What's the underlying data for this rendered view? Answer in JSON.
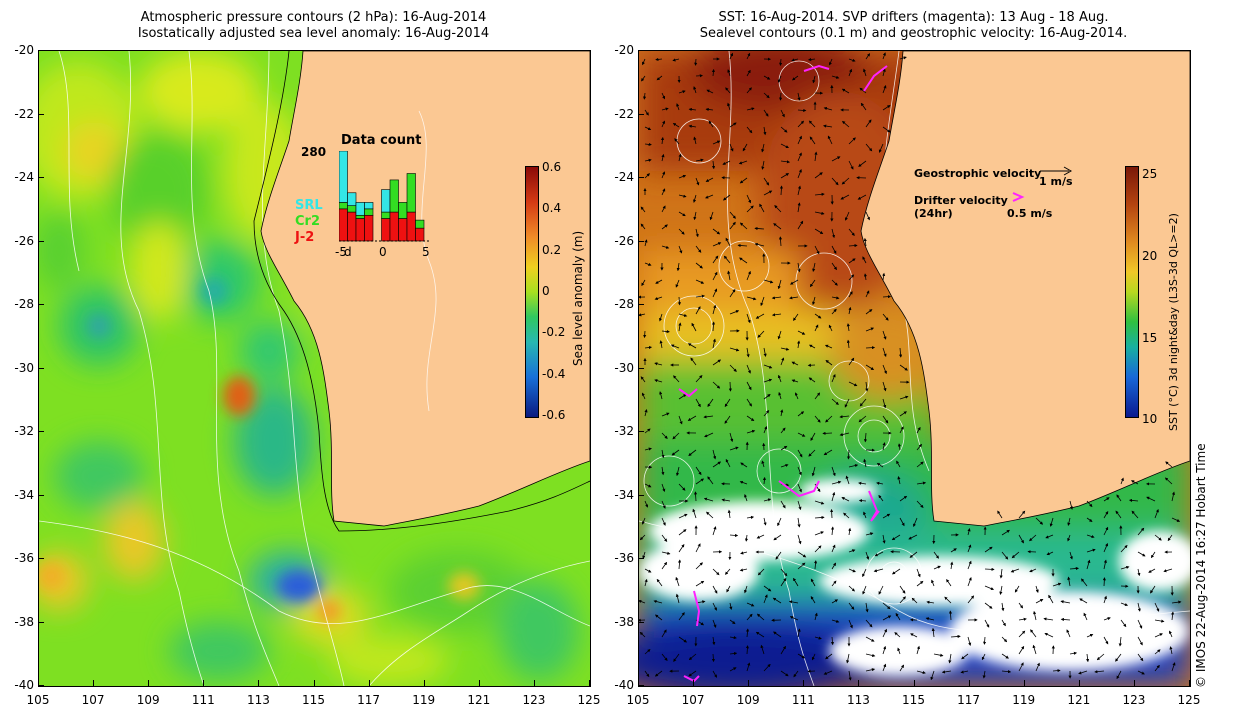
{
  "left": {
    "title_line1": "Atmospheric pressure contours (2 hPa): 16-Aug-2014",
    "title_line2": "Isostatically adjusted sea level anomaly: 16-Aug-2014",
    "colorbar_label": "Sea level anomaly (m)",
    "colorbar_ticks": [
      "0.6",
      "0.4",
      "0.2",
      "0",
      "-0.2",
      "-0.4",
      "-0.6"
    ],
    "inset": {
      "title": "Data count",
      "max_label": "280",
      "x_ticks": [
        "-5",
        "0",
        "5"
      ],
      "x_extra": "d",
      "legend": [
        {
          "name": "SRL",
          "color": "#33e6e6"
        },
        {
          "name": "Cr2",
          "color": "#33dd22"
        },
        {
          "name": "J-2",
          "color": "#ee1111"
        }
      ],
      "chart_data": {
        "type": "bar",
        "title": "Data count",
        "x": [
          -5,
          -4,
          -3,
          -2,
          -1,
          0,
          1,
          2,
          3,
          4
        ],
        "ylim": [
          0,
          280
        ],
        "series": [
          {
            "name": "J-2",
            "values": [
              100,
              90,
              70,
              80,
              0,
              70,
              90,
              70,
              90,
              40
            ]
          },
          {
            "name": "Cr2",
            "values": [
              20,
              20,
              10,
              20,
              0,
              20,
              100,
              50,
              120,
              25
            ]
          },
          {
            "name": "SRL",
            "values": [
              160,
              40,
              40,
              20,
              0,
              70,
              0,
              0,
              0,
              0
            ]
          }
        ]
      }
    }
  },
  "right": {
    "title_line1": "SST: 16-Aug-2014. SVP drifters (magenta): 13 Aug - 18 Aug.",
    "title_line2": "Sealevel contours (0.1 m) and geostrophic velocity: 16-Aug-2014.",
    "colorbar_label": "SST (°C) 3d night&day (L3S-3d QL>=2)",
    "colorbar_ticks": [
      "25",
      "20",
      "15",
      "10"
    ],
    "geostrophic_label": "Geostrophic velocity",
    "geostrophic_value": "1 m/s",
    "drifter_label": "Drifter velocity",
    "drifter_sub": "(24hr)",
    "drifter_value": "0.5 m/s"
  },
  "axes": {
    "y_ticks": [
      "-20",
      "-22",
      "-24",
      "-26",
      "-28",
      "-30",
      "-32",
      "-34",
      "-36",
      "-38",
      "-40"
    ],
    "x_ticks": [
      "105",
      "107",
      "109",
      "111",
      "113",
      "115",
      "117",
      "119",
      "121",
      "123",
      "125"
    ]
  },
  "credit": "© IMOS 22-Aug-2014 16:27 Hobart Time",
  "colors": {
    "land": "#fbc893",
    "drifter": "#ff22ff"
  }
}
